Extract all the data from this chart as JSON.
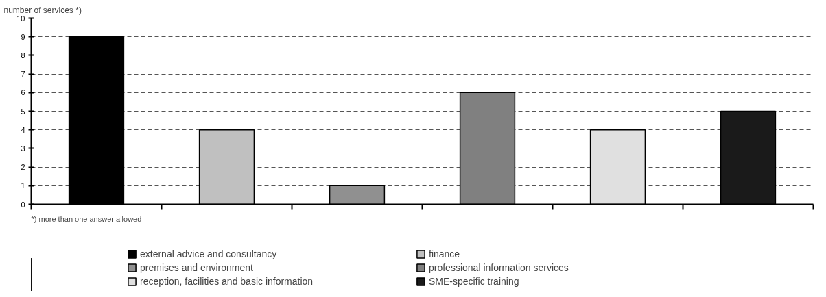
{
  "chart_data": {
    "type": "bar",
    "ylabel": "number of services *)",
    "categories": [
      null,
      null,
      null,
      null,
      null,
      null
    ],
    "series": [
      {
        "name": "external advice and consultancy",
        "color": "#000000",
        "values": [
          9,
          null,
          null,
          null,
          null,
          null
        ]
      },
      {
        "name": "finance",
        "color": "#c0c0c0",
        "values": [
          null,
          4,
          null,
          null,
          null,
          null
        ]
      },
      {
        "name": "premises and environment",
        "color": "#909090",
        "values": [
          null,
          null,
          1,
          null,
          null,
          null
        ]
      },
      {
        "name": "professional information services",
        "color": "#808080",
        "values": [
          null,
          null,
          null,
          6,
          null,
          null
        ]
      },
      {
        "name": "reception, facilities and basic information",
        "color": "#e0e0e0",
        "values": [
          null,
          null,
          null,
          null,
          4,
          null
        ]
      },
      {
        "name": "SME-specific training",
        "color": "#1a1a1a",
        "values": [
          null,
          null,
          null,
          null,
          null,
          5
        ]
      }
    ],
    "ylim": [
      0,
      10
    ],
    "yticks": [
      0,
      1,
      2,
      3,
      4,
      5,
      6,
      7,
      8,
      9,
      10
    ],
    "grid": "y",
    "legend": "bottom",
    "annotations": [
      "*) more than one answer allowed"
    ]
  }
}
